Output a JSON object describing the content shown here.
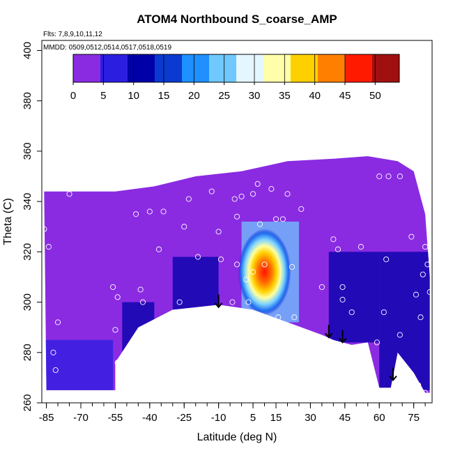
{
  "chart_data": {
    "type": "heatmap",
    "title": "ATOM4 Northbound S_coarse_AMP",
    "subtitle_flights": "Flts: 7,8,9,10,11,12",
    "subtitle_dates": "MMDD: 0509,0512,0514,0517,0518,0519",
    "xlabel": "Latitude (deg N)",
    "ylabel": "Theta (C)",
    "xlim": [
      -87,
      83
    ],
    "ylim": [
      260,
      404
    ],
    "x_ticks": [
      -85,
      -70,
      -55,
      -40,
      -25,
      -10,
      5,
      15,
      30,
      45,
      60,
      75
    ],
    "x_tick_labels": [
      "-85",
      "-70",
      "-55",
      "-40",
      "-25",
      "-10",
      "5",
      "15",
      "30",
      "45",
      "60",
      "75"
    ],
    "y_ticks": [
      260,
      280,
      300,
      320,
      340,
      360,
      380,
      400
    ],
    "y_tick_labels": [
      "260",
      "280",
      "300",
      "320",
      "340",
      "360",
      "380",
      "400"
    ],
    "colorbar": {
      "min": 0,
      "max": 54,
      "ticks": [
        0,
        5,
        10,
        15,
        20,
        25,
        30,
        35,
        40,
        45,
        50
      ],
      "tick_labels": [
        "0",
        "5",
        "10",
        "15",
        "20",
        "25",
        "30",
        "35",
        "40",
        "45",
        "50"
      ],
      "colors": [
        "#8a2be2",
        "#2b1ee0",
        "#0000a8",
        "#0a3ad0",
        "#1e90ff",
        "#6fc8ff",
        "#e4f6ff",
        "#ffffaa",
        "#ffd000",
        "#ff8000",
        "#ff1a00",
        "#a01010"
      ]
    },
    "colormap_note": "Values mostly 0-5 (purple); maximum ~45-50 near latitude 10, theta 305-315",
    "hotspot": {
      "lat": 10,
      "theta": 312,
      "value": 47
    },
    "data_region_upper_boundary": [
      [
        -86,
        344
      ],
      [
        -65,
        344
      ],
      [
        -55,
        344
      ],
      [
        -38,
        346
      ],
      [
        -20,
        350
      ],
      [
        0,
        352
      ],
      [
        20,
        356
      ],
      [
        40,
        357
      ],
      [
        55,
        358
      ],
      [
        68,
        356
      ],
      [
        75,
        352
      ],
      [
        80,
        335
      ],
      [
        82,
        310
      ]
    ],
    "data_region_lower_boundary": [
      [
        -85,
        265
      ],
      [
        -55,
        265
      ],
      [
        -55,
        276
      ],
      [
        -45,
        290
      ],
      [
        -30,
        297
      ],
      [
        -10,
        299
      ],
      [
        5,
        297
      ],
      [
        20,
        292
      ],
      [
        35,
        287
      ],
      [
        40,
        285
      ],
      [
        48,
        283
      ],
      [
        55,
        284
      ],
      [
        60,
        266
      ],
      [
        65,
        266
      ],
      [
        68,
        280
      ],
      [
        75,
        272
      ],
      [
        80,
        264
      ],
      [
        82,
        264
      ]
    ],
    "enhanced_regions": [
      {
        "lat_range": [
          -86,
          -56
        ],
        "theta_range": [
          265,
          285
        ],
        "value": 8
      },
      {
        "lat_range": [
          -52,
          -38
        ],
        "theta_range": [
          280,
          300
        ],
        "value": 10
      },
      {
        "lat_range": [
          -30,
          -10
        ],
        "theta_range": [
          296,
          318
        ],
        "value": 12
      },
      {
        "lat_range": [
          0,
          25
        ],
        "theta_range": [
          292,
          332
        ],
        "value": 25
      },
      {
        "lat_range": [
          38,
          60
        ],
        "theta_range": [
          284,
          320
        ],
        "value": 9
      },
      {
        "lat_range": [
          60,
          82
        ],
        "theta_range": [
          265,
          320
        ],
        "value": 11
      }
    ],
    "sample_points": [
      {
        "lat": -86,
        "theta": 329
      },
      {
        "lat": -84,
        "theta": 322
      },
      {
        "lat": -82,
        "theta": 280
      },
      {
        "lat": -81,
        "theta": 273
      },
      {
        "lat": -80,
        "theta": 292
      },
      {
        "lat": -75,
        "theta": 343
      },
      {
        "lat": -56,
        "theta": 306
      },
      {
        "lat": -55,
        "theta": 289
      },
      {
        "lat": -54,
        "theta": 276
      },
      {
        "lat": -54,
        "theta": 302
      },
      {
        "lat": -49,
        "theta": 282
      },
      {
        "lat": -46,
        "theta": 335
      },
      {
        "lat": -44,
        "theta": 305
      },
      {
        "lat": -43,
        "theta": 300
      },
      {
        "lat": -42,
        "theta": 289
      },
      {
        "lat": -40,
        "theta": 336
      },
      {
        "lat": -37,
        "theta": 292
      },
      {
        "lat": -36,
        "theta": 321
      },
      {
        "lat": -34,
        "theta": 336
      },
      {
        "lat": -27,
        "theta": 300
      },
      {
        "lat": -26,
        "theta": 296
      },
      {
        "lat": -25,
        "theta": 330
      },
      {
        "lat": -23,
        "theta": 341
      },
      {
        "lat": -19,
        "theta": 318
      },
      {
        "lat": -18,
        "theta": 296
      },
      {
        "lat": -13,
        "theta": 344
      },
      {
        "lat": -10,
        "theta": 328
      },
      {
        "lat": -9,
        "theta": 317
      },
      {
        "lat": -4,
        "theta": 300
      },
      {
        "lat": -3,
        "theta": 341
      },
      {
        "lat": -2,
        "theta": 315
      },
      {
        "lat": -2,
        "theta": 334
      },
      {
        "lat": 0,
        "theta": 342
      },
      {
        "lat": 2,
        "theta": 309
      },
      {
        "lat": 3,
        "theta": 300
      },
      {
        "lat": 5,
        "theta": 343
      },
      {
        "lat": 5,
        "theta": 312
      },
      {
        "lat": 7,
        "theta": 347
      },
      {
        "lat": 8,
        "theta": 331
      },
      {
        "lat": 10,
        "theta": 315
      },
      {
        "lat": 13,
        "theta": 345
      },
      {
        "lat": 15,
        "theta": 333
      },
      {
        "lat": 16,
        "theta": 294
      },
      {
        "lat": 18,
        "theta": 333
      },
      {
        "lat": 20,
        "theta": 343
      },
      {
        "lat": 22,
        "theta": 314
      },
      {
        "lat": 23,
        "theta": 294
      },
      {
        "lat": 26,
        "theta": 337
      },
      {
        "lat": 35,
        "theta": 306
      },
      {
        "lat": 40,
        "theta": 325
      },
      {
        "lat": 42,
        "theta": 321
      },
      {
        "lat": 44,
        "theta": 301
      },
      {
        "lat": 44,
        "theta": 306
      },
      {
        "lat": 48,
        "theta": 296
      },
      {
        "lat": 52,
        "theta": 322
      },
      {
        "lat": 59,
        "theta": 284
      },
      {
        "lat": 60,
        "theta": 350
      },
      {
        "lat": 62,
        "theta": 296
      },
      {
        "lat": 63,
        "theta": 317
      },
      {
        "lat": 64,
        "theta": 350
      },
      {
        "lat": 69,
        "theta": 287
      },
      {
        "lat": 69,
        "theta": 350
      },
      {
        "lat": 74,
        "theta": 326
      },
      {
        "lat": 76,
        "theta": 303
      },
      {
        "lat": 77,
        "theta": 267
      },
      {
        "lat": 78,
        "theta": 294
      },
      {
        "lat": 79,
        "theta": 311
      },
      {
        "lat": 80,
        "theta": 322
      },
      {
        "lat": 80,
        "theta": 264
      },
      {
        "lat": 81,
        "theta": 315
      },
      {
        "lat": 82,
        "theta": 304
      },
      {
        "lat": 76,
        "theta": 354
      }
    ],
    "arrows": [
      {
        "lat": -10,
        "theta_top": 303,
        "theta_bottom": 298
      },
      {
        "lat": 38,
        "theta_top": 291,
        "theta_bottom": 286
      },
      {
        "lat": 44,
        "theta_top": 289,
        "theta_bottom": 284
      },
      {
        "lat": 66,
        "theta_top": 274,
        "theta_bottom": 269
      }
    ]
  }
}
